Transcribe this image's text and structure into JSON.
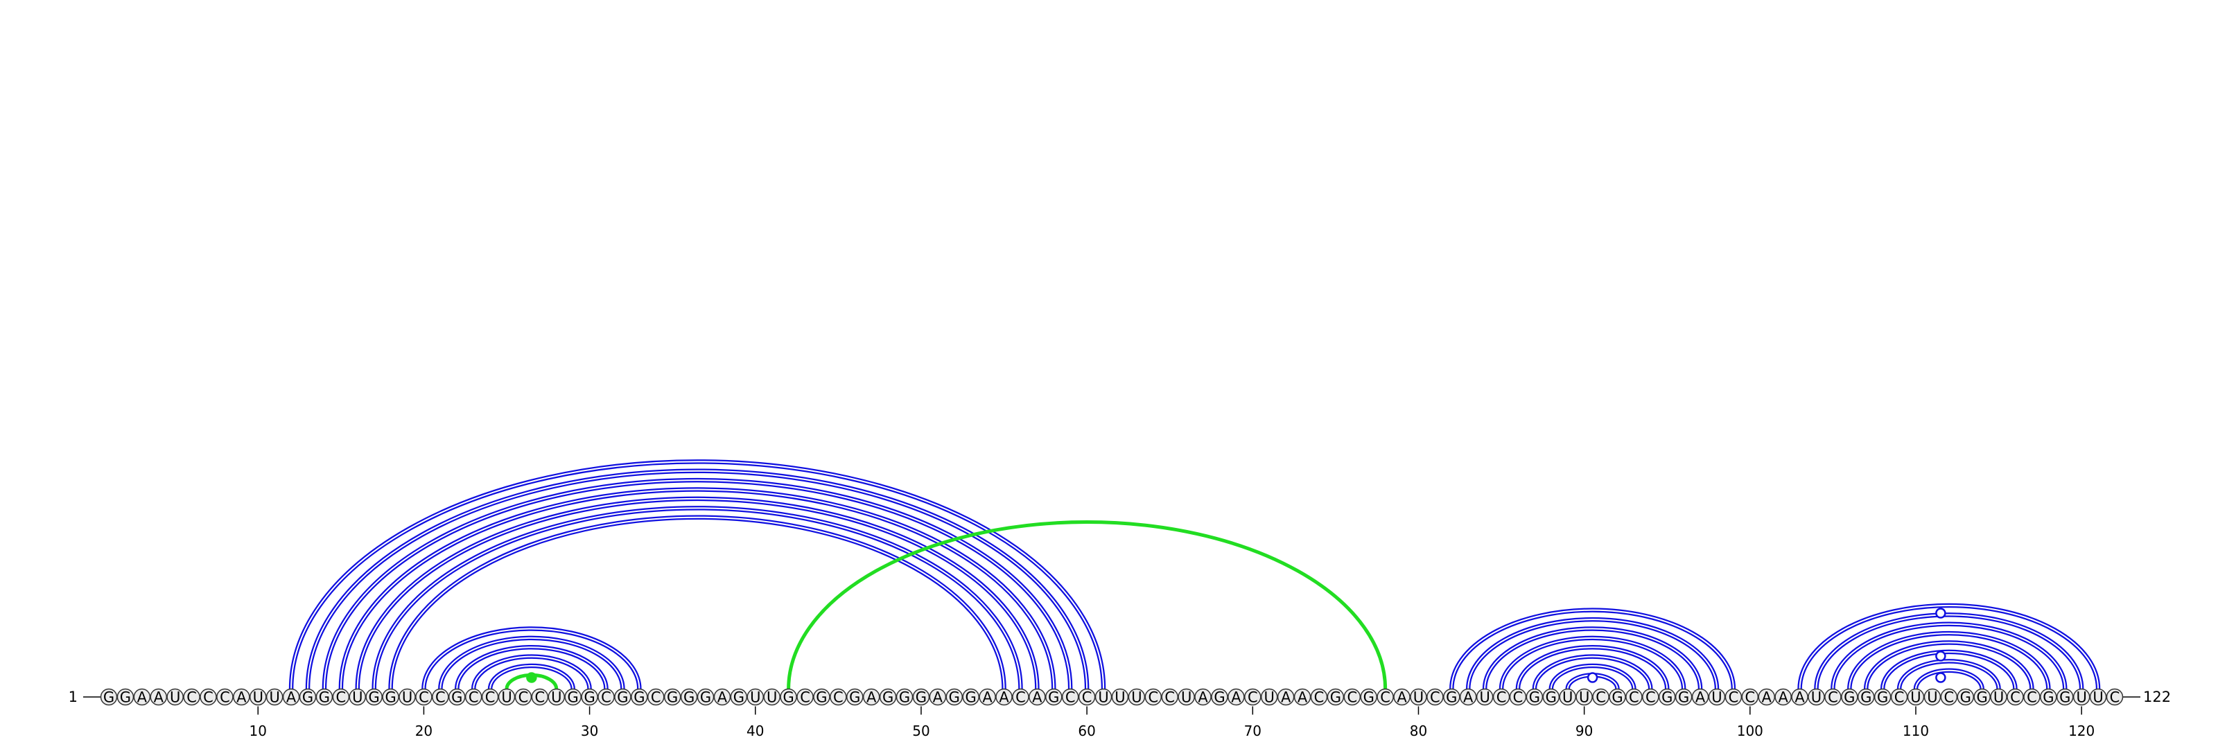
{
  "diagram": {
    "type": "rna-arc-diagram",
    "sequence": "GGAAUCCCAUUAGGCUGGUCCGCCUCCUGGCGGCGGGAGUUGCGCGAGGGAGGAACAGCCUUUCCUAGACUAACGCGCAUCGAUCCGGUUCGCCGGAUCCAAAUCGGGCUUCGGUCCGGUUC",
    "start_label": "1",
    "end_label": "122",
    "tick_labels": [
      "10",
      "20",
      "30",
      "40",
      "50",
      "60",
      "70",
      "80",
      "90",
      "100",
      "110",
      "120"
    ],
    "tick_positions": [
      10,
      20,
      30,
      40,
      50,
      60,
      70,
      80,
      90,
      100,
      110,
      120
    ],
    "colors": {
      "pair": "#1010e0",
      "pseudoknot": "#22dd22",
      "nucleotide_fill": "#ececec",
      "nucleotide_stroke": "#333333",
      "line": "#000000"
    },
    "arc_groups": [
      {
        "color": "pair",
        "pairs": [
          [
            12,
            61
          ],
          [
            13,
            60
          ],
          [
            14,
            59
          ],
          [
            15,
            58
          ],
          [
            16,
            57
          ],
          [
            17,
            56
          ],
          [
            18,
            55
          ]
        ]
      },
      {
        "color": "pair",
        "pairs": [
          [
            20,
            33
          ],
          [
            21,
            32
          ],
          [
            22,
            31
          ],
          [
            23,
            30
          ],
          [
            24,
            29
          ]
        ]
      },
      {
        "color": "pseudoknot",
        "pairs": [
          [
            42,
            78
          ],
          [
            25,
            28
          ]
        ]
      },
      {
        "color": "pair",
        "pairs": [
          [
            82,
            99
          ],
          [
            83,
            98
          ],
          [
            84,
            97
          ],
          [
            85,
            96
          ],
          [
            86,
            95
          ],
          [
            87,
            94
          ],
          [
            88,
            93
          ],
          [
            89,
            92
          ]
        ]
      },
      {
        "color": "pair",
        "pairs": [
          [
            103,
            121
          ],
          [
            104,
            120
          ],
          [
            105,
            119
          ],
          [
            106,
            118
          ],
          [
            107,
            117
          ],
          [
            108,
            116
          ],
          [
            109,
            115
          ],
          [
            110,
            114
          ]
        ]
      }
    ]
  }
}
